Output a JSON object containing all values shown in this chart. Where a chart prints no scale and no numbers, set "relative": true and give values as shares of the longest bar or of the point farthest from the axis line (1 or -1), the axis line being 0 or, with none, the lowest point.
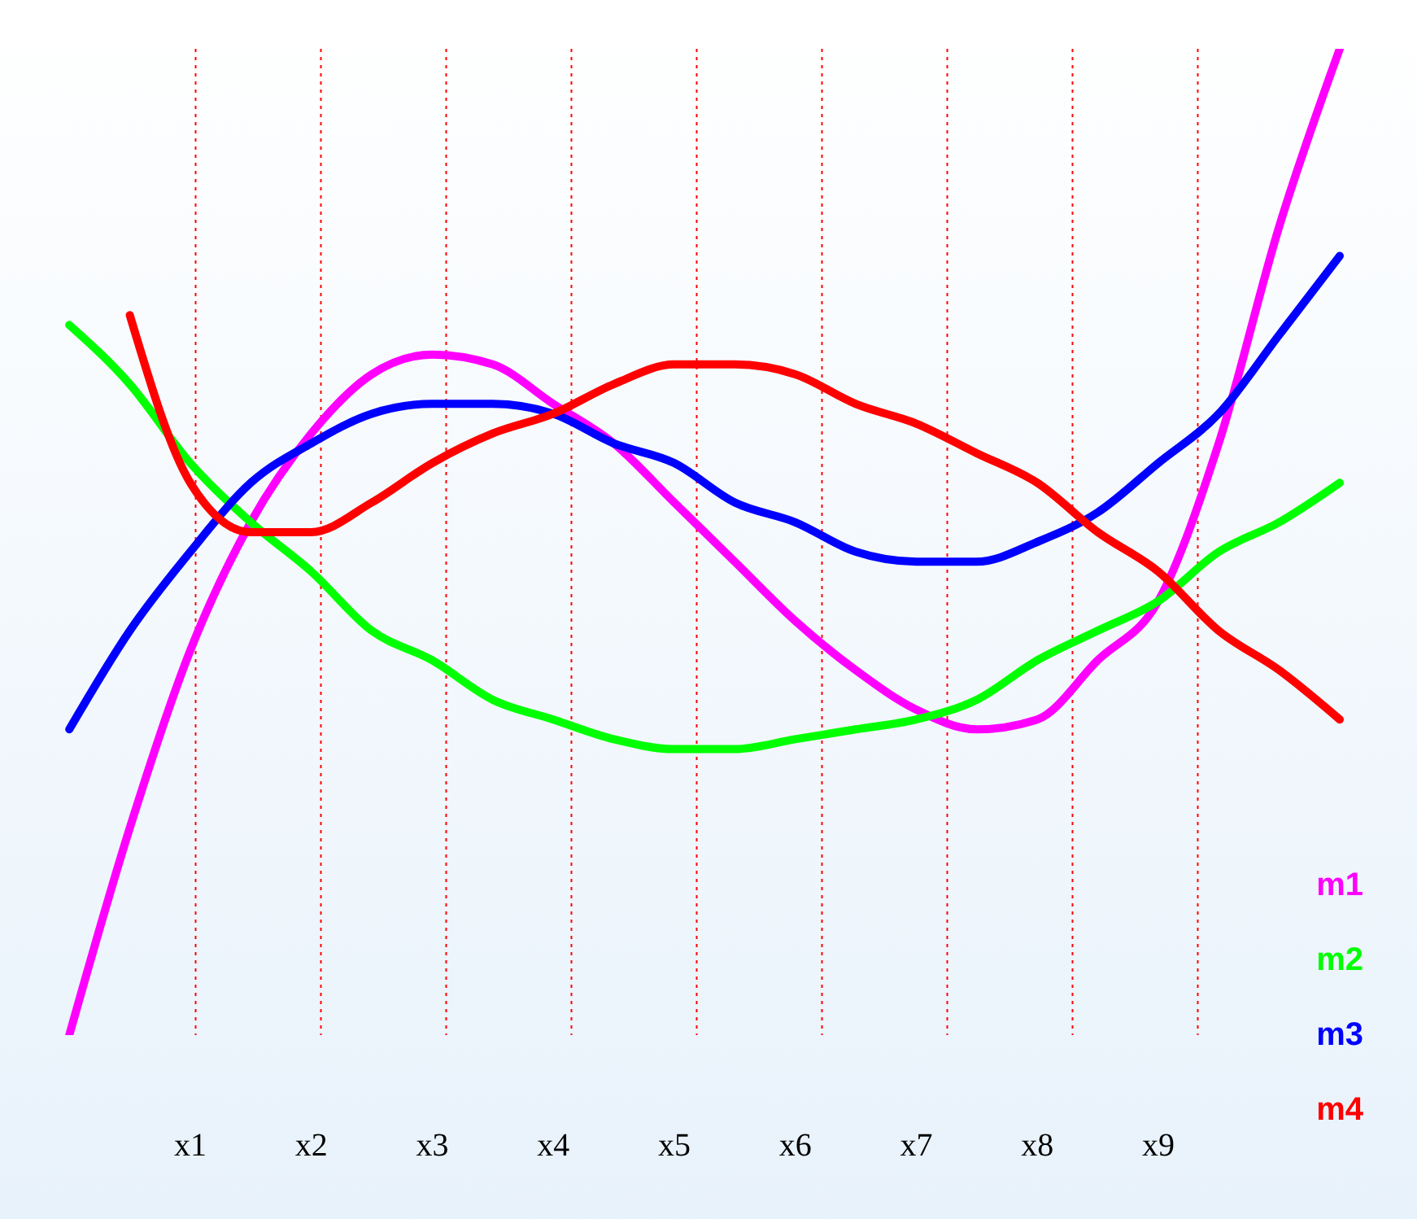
{
  "chart_data": {
    "type": "line",
    "relative": true,
    "grid": "x",
    "legend": "bottom right",
    "marker": "none",
    "line_style": "solid",
    "categories": [
      null,
      null,
      "x1",
      null,
      "x2",
      null,
      "x3",
      null,
      "x4",
      null,
      "x5",
      null,
      "x6",
      null,
      "x7",
      null,
      "x8",
      null,
      "x9",
      null,
      null,
      null
    ],
    "series": [
      {
        "name": "m1",
        "color": "#ff00ff",
        "values": [
          0,
          0.21,
          0.39,
          0.52,
          0.61,
          0.67,
          0.69,
          0.68,
          0.64,
          0.6,
          0.54,
          0.48,
          0.42,
          0.37,
          0.33,
          0.31,
          0.32,
          0.38,
          0.44,
          0.6,
          0.82,
          1
        ]
      },
      {
        "name": "m2",
        "color": "#00ff00",
        "values": [
          0.72,
          0.66,
          0.58,
          0.52,
          0.47,
          0.41,
          0.38,
          0.34,
          0.32,
          0.3,
          0.29,
          0.29,
          0.3,
          0.31,
          0.32,
          0.34,
          0.38,
          0.41,
          0.44,
          0.49,
          0.52,
          0.56
        ]
      },
      {
        "name": "m3",
        "color": "#0000ff",
        "values": [
          0.31,
          0.41,
          0.49,
          0.56,
          0.6,
          0.63,
          0.64,
          0.64,
          0.63,
          0.6,
          0.58,
          0.54,
          0.52,
          0.49,
          0.48,
          0.48,
          0.5,
          0.53,
          0.58,
          0.63,
          0.71,
          0.79
        ]
      },
      {
        "name": "m4",
        "color": "#ff0000",
        "values": [
          null,
          0.73,
          0.56,
          0.51,
          0.51,
          0.54,
          0.58,
          0.61,
          0.63,
          0.66,
          0.68,
          0.68,
          0.67,
          0.64,
          0.62,
          0.59,
          0.56,
          0.51,
          0.47,
          0.41,
          0.37,
          0.32
        ]
      }
    ]
  }
}
